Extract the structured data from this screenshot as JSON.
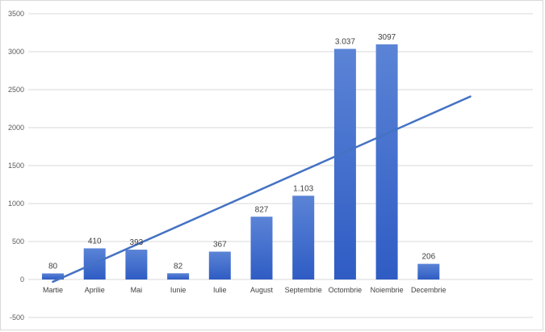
{
  "chart_data": {
    "type": "bar",
    "title": "",
    "xlabel": "",
    "ylabel": "",
    "categories": [
      "Martie",
      "Aprilie",
      "Mai",
      "Iunie",
      "Iulie",
      "August",
      "Septembrie",
      "Octombrie",
      "Noiembrie",
      "Decembrie"
    ],
    "values": [
      80,
      410,
      393,
      82,
      367,
      827,
      1103,
      3037,
      3097,
      206
    ],
    "data_labels": [
      "80",
      "410",
      "393",
      "82",
      "367",
      "827",
      "1.103",
      "3.037",
      "3097",
      "206"
    ],
    "ylim": [
      -500,
      3500
    ],
    "yticks": [
      -500,
      0,
      500,
      1000,
      1500,
      2000,
      2500,
      3000,
      3500
    ],
    "ytick_labels": [
      "-500",
      "0",
      "500",
      "1000",
      "1500",
      "2000",
      "2500",
      "3000",
      "3500"
    ],
    "grid": true,
    "legend": "none",
    "trendline": {
      "type": "linear",
      "start": -30,
      "end": 2410
    },
    "colors": {
      "bar_top": "#5b84d6",
      "bar_bottom": "#2f5cc4",
      "trendline": "#4472c4",
      "grid": "#d9d9d9"
    }
  }
}
